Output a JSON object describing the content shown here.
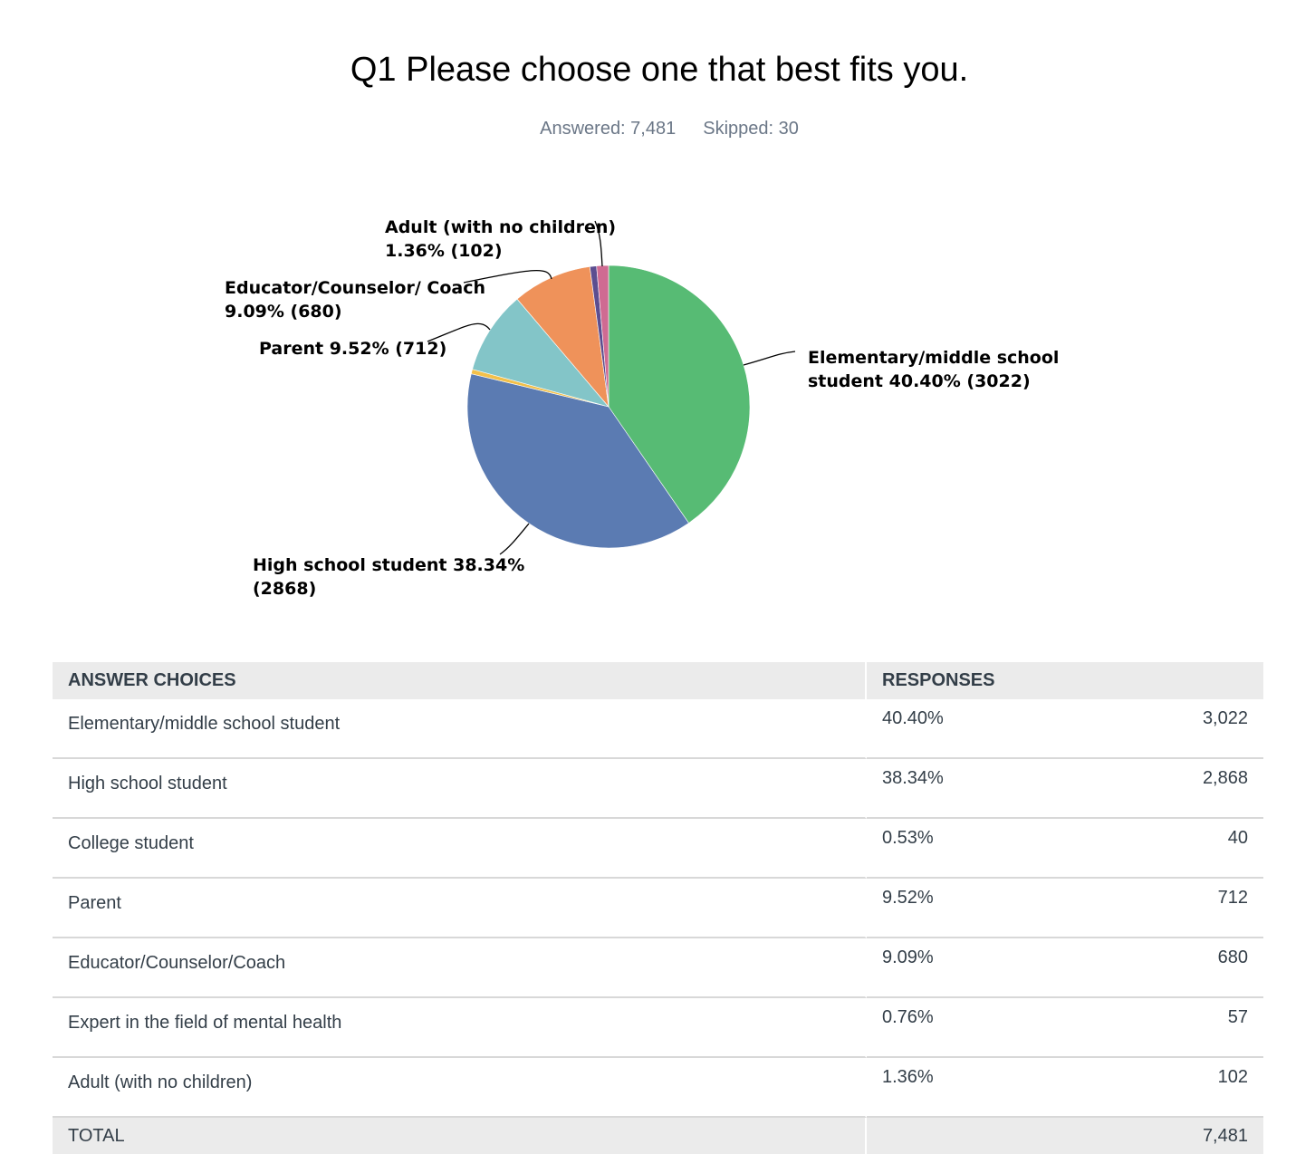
{
  "question": {
    "title": "Q1 Please choose one that best fits you.",
    "answered": "Answered: 7,481",
    "skipped": "Skipped: 30"
  },
  "chart_data": {
    "type": "pie",
    "title": "Q1 Please choose one that best fits you.",
    "slices": [
      {
        "name": "Elementary/middle school student",
        "percent": 40.4,
        "count": 3022,
        "color": "#57bb74",
        "label_lines": [
          "Elementary/middle school",
          "student 40.40% (3022)"
        ]
      },
      {
        "name": "High school student",
        "percent": 38.34,
        "count": 2868,
        "color": "#5b7bb2",
        "label_lines": [
          "High school student 38.34%",
          "(2868)"
        ]
      },
      {
        "name": "College student",
        "percent": 0.53,
        "count": 40,
        "color": "#f2c04a",
        "label_lines": []
      },
      {
        "name": "Parent",
        "percent": 9.52,
        "count": 712,
        "color": "#83c5c8",
        "label_lines": [
          "Parent 9.52% (712)"
        ]
      },
      {
        "name": "Educator/Counselor/Coach",
        "percent": 9.09,
        "count": 680,
        "color": "#ef925a",
        "label_lines": [
          "Educator/Counselor/ Coach",
          "9.09% (680)"
        ]
      },
      {
        "name": "Expert in the field of mental health",
        "percent": 0.76,
        "count": 57,
        "color": "#5c4e90",
        "label_lines": []
      },
      {
        "name": "Adult (with no children)",
        "percent": 1.36,
        "count": 102,
        "color": "#cf6b92",
        "label_lines": [
          "Adult (with no children)",
          "1.36% (102)"
        ]
      }
    ]
  },
  "table": {
    "headers": {
      "choice": "ANSWER CHOICES",
      "responses": "RESPONSES"
    },
    "rows": [
      {
        "choice": "Elementary/middle school student",
        "percent": "40.40%",
        "count": "3,022"
      },
      {
        "choice": "High school student",
        "percent": "38.34%",
        "count": "2,868"
      },
      {
        "choice": "College student",
        "percent": "0.53%",
        "count": "40"
      },
      {
        "choice": "Parent",
        "percent": "9.52%",
        "count": "712"
      },
      {
        "choice": "Educator/Counselor/Coach",
        "percent": "9.09%",
        "count": "680"
      },
      {
        "choice": "Expert in the field of mental health",
        "percent": "0.76%",
        "count": "57"
      },
      {
        "choice": "Adult (with no children)",
        "percent": "1.36%",
        "count": "102"
      }
    ],
    "total_label": "TOTAL",
    "total_percent": "",
    "total_count": "7,481"
  }
}
